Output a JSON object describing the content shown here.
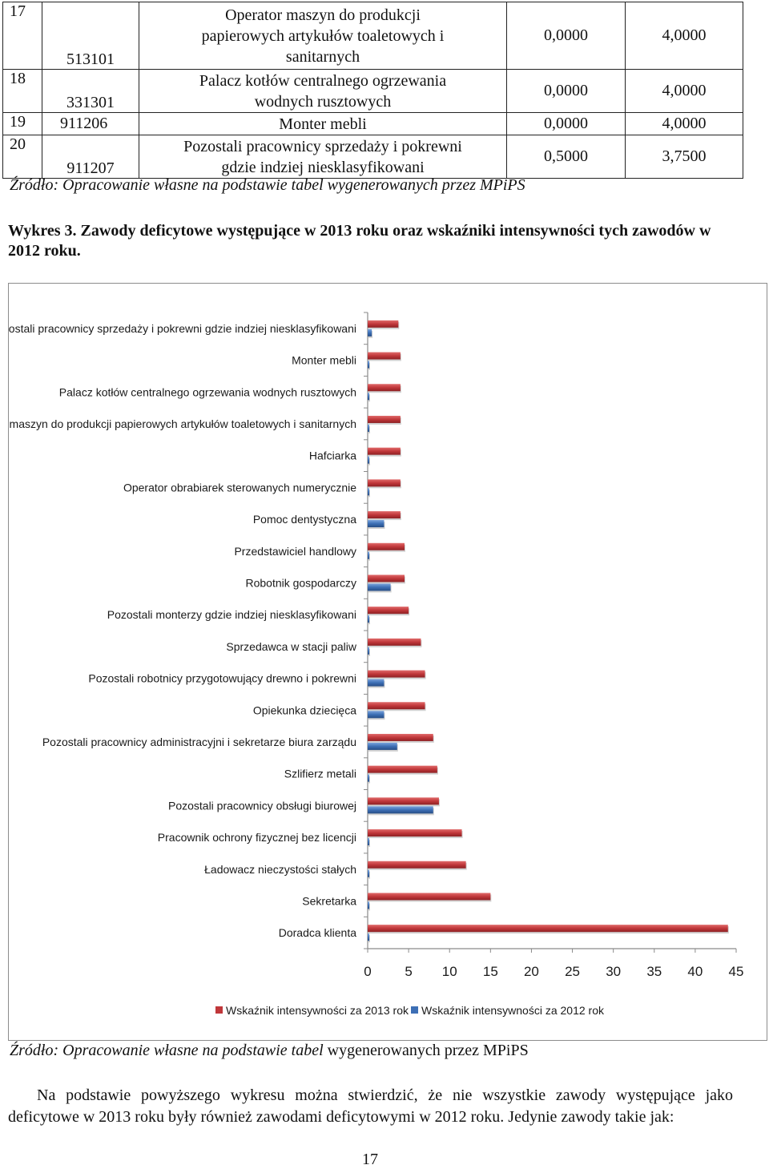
{
  "table": {
    "rows": [
      {
        "nr": "17",
        "code": "513101",
        "name_lines": [
          "Operator maszyn do produkcji",
          "papierowych artykułów toaletowych i",
          "sanitarnych"
        ],
        "val_2012": "0,0000",
        "val_2013": "4,0000"
      },
      {
        "nr": "18",
        "code": "331301",
        "name_lines": [
          "Palacz kotłów centralnego ogrzewania",
          "wodnych rusztowych"
        ],
        "val_2012": "0,0000",
        "val_2013": "4,0000"
      },
      {
        "nr": "19",
        "code": "911206",
        "name_lines": [
          "Monter mebli"
        ],
        "val_2012": "0,0000",
        "val_2013": "4,0000"
      },
      {
        "nr": "20",
        "code": "911207",
        "name_lines": [
          "Pozostali pracownicy sprzedaży i pokrewni",
          "gdzie indziej niesklasyfikowani"
        ],
        "val_2012": "0,5000",
        "val_2013": "3,7500"
      }
    ]
  },
  "source_top": "Źródło: Opracowanie własne na podstawie tabel wygenerowanych przez MPiPS",
  "figure_caption": "Wykres 3. Zawody deficytowe występujące w 2013  roku oraz wskaźniki intensywności tych zawodów w  2012 roku.",
  "chart_data": {
    "type": "bar",
    "orientation": "horizontal",
    "categories": [
      "Pozostali pracownicy sprzedaży i pokrewni gdzie indziej niesklasyfikowani",
      "Monter mebli",
      "Palacz kotłów centralnego ogrzewania wodnych rusztowych",
      "Operator maszyn do produkcji papierowych artykułów toaletowych i sanitarnych",
      "Hafciarka",
      "Operator obrabiarek sterowanych numerycznie",
      "Pomoc dentystyczna",
      "Przedstawiciel handlowy",
      "Robotnik gospodarczy",
      "Pozostali monterzy gdzie indziej niesklasyfikowani",
      "Sprzedawca w stacji paliw",
      "Pozostali robotnicy przygotowujący drewno i pokrewni",
      "Opiekunka dziecięca",
      "Pozostali pracownicy administracyjni i sekretarze biura zarządu",
      "Szlifierz metali",
      "Pozostali pracownicy obsługi biurowej",
      "Pracownik ochrony fizycznej bez licencji",
      "Ładowacz nieczystości stałych",
      "Sekretarka",
      "Doradca klienta"
    ],
    "series": [
      {
        "name": "Wskaźnik intensywności za  2013 rok",
        "color": "#c0373a",
        "values": [
          3.75,
          4.0,
          4.0,
          4.0,
          4.0,
          4.0,
          4.0,
          4.5,
          4.5,
          5.0,
          6.5,
          7.0,
          7.0,
          8.0,
          8.5,
          8.7,
          11.5,
          12.0,
          15.0,
          44.0
        ]
      },
      {
        "name": "Wskaźnik intensywności za  2012 rok",
        "color": "#3d6fb5",
        "values": [
          0.5,
          0,
          0,
          0,
          0,
          0,
          2.0,
          0,
          2.8,
          0,
          0,
          2.0,
          2.0,
          3.6,
          0,
          8.0,
          0,
          0,
          0,
          0
        ]
      }
    ],
    "xlim": [
      0,
      45
    ],
    "xticks": [
      "0",
      "5",
      "10",
      "15",
      "20",
      "25",
      "30",
      "35",
      "40",
      "45"
    ],
    "legend_position": "bottom",
    "grid": false
  },
  "source_bottom": {
    "italic": "Źródło: Opracowanie własne na podstawie tabel ",
    "normal": "wygenerowanych przez MPiPS"
  },
  "paragraph": "Na podstawie powyższego wykresu można stwierdzić, że nie wszystkie zawody występujące jako deficytowe w 2013 roku były również zawodami deficytowymi w 2012 roku. Jedynie zawody takie jak:",
  "page_number": "17"
}
